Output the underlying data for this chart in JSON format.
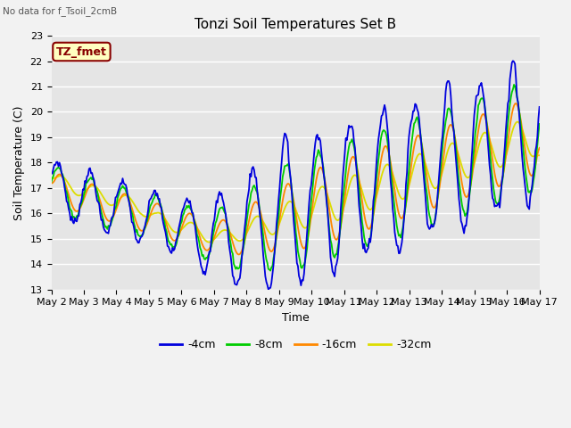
{
  "title": "Tonzi Soil Temperatures Set B",
  "no_data_label": "No data for f_Tsoil_2cmB",
  "tz_fmet_label": "TZ_fmet",
  "xlabel": "Time",
  "ylabel": "Soil Temperature (C)",
  "ylim": [
    13.0,
    23.0
  ],
  "yticks": [
    13.0,
    14.0,
    15.0,
    16.0,
    17.0,
    18.0,
    19.0,
    20.0,
    21.0,
    22.0,
    23.0
  ],
  "xtick_labels": [
    "May 2",
    "May 3",
    "May 4",
    "May 5",
    "May 6",
    "May 7",
    "May 8",
    "May 9",
    "May 10",
    "May 11",
    "May 12",
    "May 13",
    "May 14",
    "May 15",
    "May 16",
    "May 17"
  ],
  "color_4cm": "#0000dd",
  "color_8cm": "#00cc00",
  "color_16cm": "#ff8800",
  "color_32cm": "#dddd00",
  "bg_color": "#e5e5e5",
  "fig_bg_color": "#f2f2f2",
  "tz_box_fill": "#ffffc0",
  "tz_box_edge": "#880000",
  "tz_text_color": "#880000",
  "legend_labels": [
    "-4cm",
    "-8cm",
    "-16cm",
    "-32cm"
  ],
  "grid_color": "#ffffff",
  "lw": 1.3
}
